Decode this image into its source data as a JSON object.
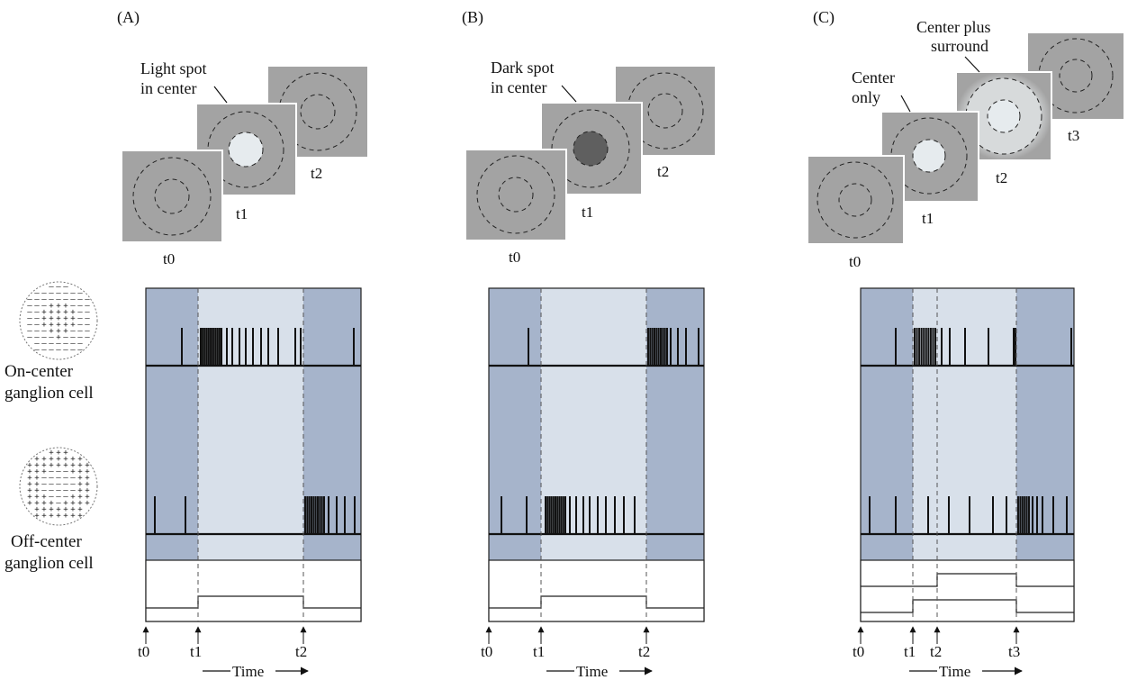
{
  "panels": [
    {
      "letter": "(A)",
      "stimulus_caption": [
        "Light spot",
        "in center"
      ],
      "frame_labels": [
        "t0",
        "t1",
        "t2"
      ],
      "frames": [
        {
          "label": "t0",
          "spot": "none"
        },
        {
          "label": "t1",
          "spot": "light-center"
        },
        {
          "label": "t2",
          "spot": "none"
        }
      ],
      "time_markers": [
        "t0",
        "t1",
        "t2"
      ],
      "on_center_spikes": "low at t0, burst after t1, low after t2",
      "off_center_spikes": "low at t0, suppressed t1–t2, burst after t2"
    },
    {
      "letter": "(B)",
      "stimulus_caption": [
        "Dark spot",
        "in center"
      ],
      "frame_labels": [
        "t0",
        "t1",
        "t2"
      ],
      "frames": [
        {
          "label": "t0",
          "spot": "none"
        },
        {
          "label": "t1",
          "spot": "dark-center"
        },
        {
          "label": "t2",
          "spot": "none"
        }
      ],
      "time_markers": [
        "t0",
        "t1",
        "t2"
      ],
      "on_center_spikes": "low at t0, suppressed t1–t2, burst after t2",
      "off_center_spikes": "low at t0, burst after t1, low after t2"
    },
    {
      "letter": "(C)",
      "stimulus_caption_1": [
        "Center",
        "only"
      ],
      "stimulus_caption_2": [
        "Center plus",
        "surround"
      ],
      "frame_labels": [
        "t0",
        "t1",
        "t2",
        "t3"
      ],
      "frames": [
        {
          "label": "t0",
          "spot": "none"
        },
        {
          "label": "t1",
          "spot": "light-center"
        },
        {
          "label": "t2",
          "spot": "light-center-and-surround"
        },
        {
          "label": "t3",
          "spot": "none"
        }
      ],
      "time_markers": [
        "t0",
        "t1",
        "t2",
        "t3"
      ],
      "on_center_spikes": "burst after t1, moderate after t2, low after t3",
      "off_center_spikes": "low at t0–t2, moderate after t2, burst after t3"
    }
  ],
  "row_labels": {
    "on_center": [
      "On-center",
      "ganglion cell"
    ],
    "off_center": [
      "Off-center",
      "ganglion cell"
    ]
  },
  "time_label": "Time",
  "colors": {
    "background_dark": "#a6b4cb",
    "background_light": "#d8e0ea",
    "frame_gray": "#a3a3a3",
    "light_spot": "#e6ebee",
    "dark_spot": "#5f5f5f",
    "surround_light": "#d7dadb"
  }
}
